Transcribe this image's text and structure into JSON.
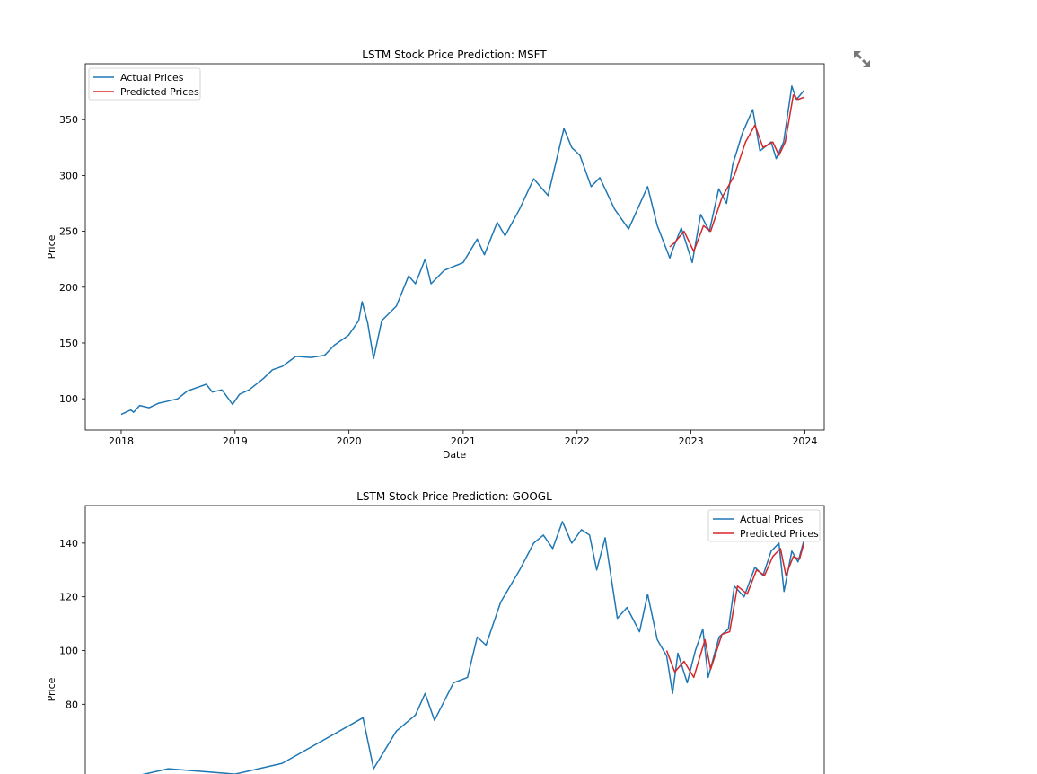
{
  "toolbar": {
    "expand_icon": "expand-arrows-icon"
  },
  "colors": {
    "actual": "#1f77b4",
    "predicted": "#d62728",
    "axis": "#000000"
  },
  "chart_data": [
    {
      "type": "line",
      "title": "LSTM Stock Price Prediction: MSFT",
      "xlabel": "Date",
      "ylabel": "Price",
      "xlim": [
        "2017-09-08",
        "2024-03-03"
      ],
      "ylim": [
        72,
        400
      ],
      "x_ticks": [
        "2018",
        "2019",
        "2020",
        "2021",
        "2022",
        "2023",
        "2024"
      ],
      "y_ticks": [
        100,
        150,
        200,
        250,
        300,
        350
      ],
      "legend": {
        "position": "upper-left",
        "entries": [
          "Actual Prices",
          "Predicted Prices"
        ]
      },
      "series": [
        {
          "name": "Actual Prices",
          "points": [
            [
              "2018-01-01",
              86
            ],
            [
              "2018-02-01",
              90
            ],
            [
              "2018-02-10",
              88
            ],
            [
              "2018-03-01",
              94
            ],
            [
              "2018-04-01",
              92
            ],
            [
              "2018-05-01",
              96
            ],
            [
              "2018-06-01",
              98
            ],
            [
              "2018-07-01",
              100
            ],
            [
              "2018-08-01",
              107
            ],
            [
              "2018-09-01",
              110
            ],
            [
              "2018-10-01",
              113
            ],
            [
              "2018-10-20",
              106
            ],
            [
              "2018-11-20",
              108
            ],
            [
              "2018-12-24",
              95
            ],
            [
              "2019-01-15",
              104
            ],
            [
              "2019-02-15",
              108
            ],
            [
              "2019-04-01",
              118
            ],
            [
              "2019-05-01",
              126
            ],
            [
              "2019-06-01",
              129
            ],
            [
              "2019-07-15",
              138
            ],
            [
              "2019-09-01",
              137
            ],
            [
              "2019-10-15",
              139
            ],
            [
              "2019-11-15",
              148
            ],
            [
              "2019-12-31",
              157
            ],
            [
              "2020-02-01",
              170
            ],
            [
              "2020-02-12",
              187
            ],
            [
              "2020-03-01",
              168
            ],
            [
              "2020-03-20",
              136
            ],
            [
              "2020-04-15",
              170
            ],
            [
              "2020-06-01",
              183
            ],
            [
              "2020-07-10",
              210
            ],
            [
              "2020-08-01",
              203
            ],
            [
              "2020-09-01",
              225
            ],
            [
              "2020-09-20",
              203
            ],
            [
              "2020-11-01",
              215
            ],
            [
              "2021-01-01",
              222
            ],
            [
              "2021-02-15",
              243
            ],
            [
              "2021-03-10",
              229
            ],
            [
              "2021-04-20",
              258
            ],
            [
              "2021-05-15",
              246
            ],
            [
              "2021-07-01",
              270
            ],
            [
              "2021-08-15",
              297
            ],
            [
              "2021-09-30",
              282
            ],
            [
              "2021-11-20",
              342
            ],
            [
              "2021-12-15",
              325
            ],
            [
              "2022-01-10",
              318
            ],
            [
              "2022-02-15",
              290
            ],
            [
              "2022-03-15",
              298
            ],
            [
              "2022-05-01",
              270
            ],
            [
              "2022-06-15",
              252
            ],
            [
              "2022-08-15",
              290
            ],
            [
              "2022-09-15",
              255
            ],
            [
              "2022-10-25",
              226
            ],
            [
              "2022-11-01",
              232
            ],
            [
              "2022-12-01",
              253
            ],
            [
              "2023-01-05",
              222
            ],
            [
              "2023-02-01",
              265
            ],
            [
              "2023-03-01",
              250
            ],
            [
              "2023-03-31",
              288
            ],
            [
              "2023-04-25",
              275
            ],
            [
              "2023-05-15",
              310
            ],
            [
              "2023-06-15",
              338
            ],
            [
              "2023-07-18",
              359
            ],
            [
              "2023-08-10",
              322
            ],
            [
              "2023-09-15",
              330
            ],
            [
              "2023-10-01",
              315
            ],
            [
              "2023-10-25",
              330
            ],
            [
              "2023-11-20",
              380
            ],
            [
              "2023-12-05",
              368
            ],
            [
              "2023-12-29",
              376
            ]
          ]
        },
        {
          "name": "Predicted Prices",
          "points": [
            [
              "2022-10-25",
              236
            ],
            [
              "2022-11-10",
              240
            ],
            [
              "2022-12-10",
              250
            ],
            [
              "2023-01-10",
              232
            ],
            [
              "2023-02-10",
              255
            ],
            [
              "2023-03-05",
              250
            ],
            [
              "2023-04-10",
              280
            ],
            [
              "2023-05-20",
              300
            ],
            [
              "2023-06-25",
              330
            ],
            [
              "2023-07-25",
              345
            ],
            [
              "2023-08-20",
              325
            ],
            [
              "2023-09-20",
              330
            ],
            [
              "2023-10-10",
              318
            ],
            [
              "2023-10-30",
              330
            ],
            [
              "2023-11-25",
              372
            ],
            [
              "2023-12-10",
              368
            ],
            [
              "2023-12-29",
              370
            ]
          ]
        }
      ]
    },
    {
      "type": "line",
      "title": "LSTM Stock Price Prediction: GOOGL",
      "xlabel": "",
      "ylabel": "Price",
      "xlim": [
        "2017-09-08",
        "2024-03-03"
      ],
      "ylim": [
        47,
        154
      ],
      "x_ticks": [],
      "y_ticks": [
        80,
        100,
        120,
        140
      ],
      "legend": {
        "position": "upper-right",
        "entries": [
          "Actual Prices",
          "Predicted Prices"
        ]
      },
      "series": [
        {
          "name": "Actual Prices",
          "points": [
            [
              "2018-01-01",
              52
            ],
            [
              "2018-06-01",
              56
            ],
            [
              "2019-01-01",
              54
            ],
            [
              "2019-06-01",
              58
            ],
            [
              "2020-01-01",
              72
            ],
            [
              "2020-02-15",
              75
            ],
            [
              "2020-03-20",
              56
            ],
            [
              "2020-06-01",
              70
            ],
            [
              "2020-08-01",
              76
            ],
            [
              "2020-09-01",
              84
            ],
            [
              "2020-10-01",
              74
            ],
            [
              "2020-12-01",
              88
            ],
            [
              "2021-01-15",
              90
            ],
            [
              "2021-02-15",
              105
            ],
            [
              "2021-03-15",
              102
            ],
            [
              "2021-05-01",
              118
            ],
            [
              "2021-07-01",
              130
            ],
            [
              "2021-08-15",
              140
            ],
            [
              "2021-09-15",
              143
            ],
            [
              "2021-10-15",
              138
            ],
            [
              "2021-11-15",
              148
            ],
            [
              "2021-12-15",
              140
            ],
            [
              "2022-01-15",
              145
            ],
            [
              "2022-02-10",
              143
            ],
            [
              "2022-03-05",
              130
            ],
            [
              "2022-04-01",
              142
            ],
            [
              "2022-05-10",
              112
            ],
            [
              "2022-06-10",
              116
            ],
            [
              "2022-07-20",
              107
            ],
            [
              "2022-08-15",
              121
            ],
            [
              "2022-09-15",
              104
            ],
            [
              "2022-10-15",
              98
            ],
            [
              "2022-11-03",
              84
            ],
            [
              "2022-11-20",
              99
            ],
            [
              "2022-12-20",
              88
            ],
            [
              "2023-01-15",
              100
            ],
            [
              "2023-02-08",
              108
            ],
            [
              "2023-02-25",
              90
            ],
            [
              "2023-04-01",
              105
            ],
            [
              "2023-05-01",
              108
            ],
            [
              "2023-05-20",
              124
            ],
            [
              "2023-06-20",
              120
            ],
            [
              "2023-07-25",
              131
            ],
            [
              "2023-08-20",
              128
            ],
            [
              "2023-09-15",
              137
            ],
            [
              "2023-10-10",
              140
            ],
            [
              "2023-10-26",
              122
            ],
            [
              "2023-11-20",
              137
            ],
            [
              "2023-12-10",
              133
            ],
            [
              "2023-12-29",
              141
            ]
          ]
        },
        {
          "name": "Predicted Prices",
          "points": [
            [
              "2022-10-15",
              100
            ],
            [
              "2022-11-10",
              92
            ],
            [
              "2022-12-10",
              96
            ],
            [
              "2023-01-10",
              90
            ],
            [
              "2023-02-15",
              104
            ],
            [
              "2023-03-05",
              93
            ],
            [
              "2023-04-10",
              106
            ],
            [
              "2023-05-05",
              107
            ],
            [
              "2023-05-30",
              124
            ],
            [
              "2023-06-30",
              121
            ],
            [
              "2023-07-30",
              130
            ],
            [
              "2023-08-25",
              128
            ],
            [
              "2023-09-20",
              135
            ],
            [
              "2023-10-15",
              138
            ],
            [
              "2023-11-01",
              128
            ],
            [
              "2023-11-25",
              135
            ],
            [
              "2023-12-15",
              134
            ],
            [
              "2023-12-29",
              140
            ]
          ]
        }
      ]
    }
  ]
}
